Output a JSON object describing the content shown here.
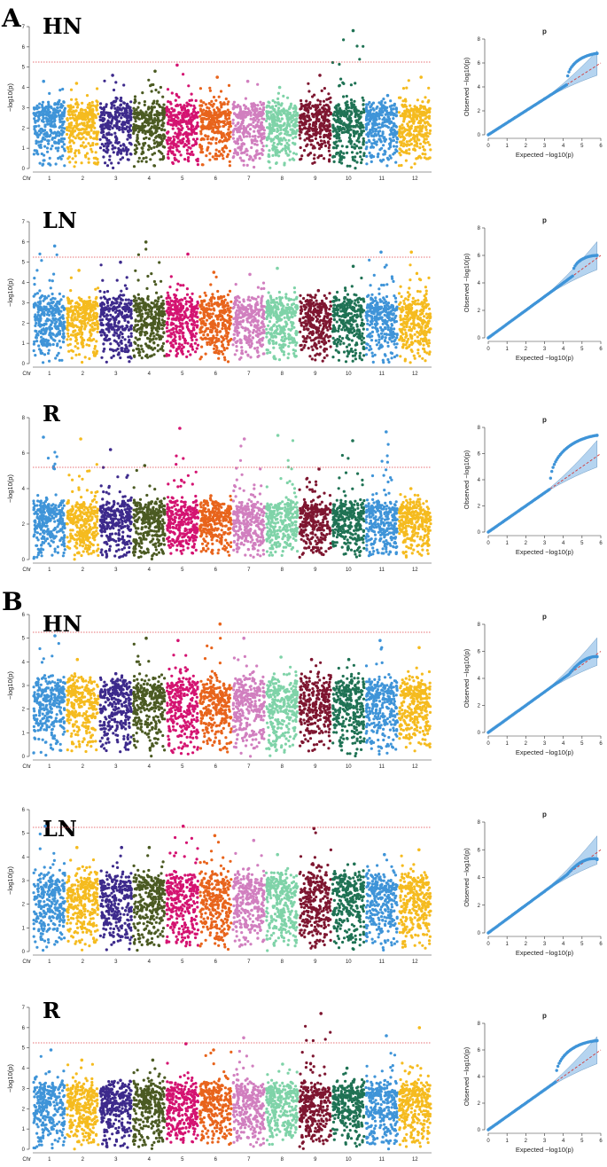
{
  "figure": {
    "panel_letters": [
      "A",
      "B"
    ],
    "colors": {
      "chromosomes": [
        "#3f94d8",
        "#f5bb1f",
        "#3d2a8c",
        "#4b5a22",
        "#d41371",
        "#e8641c",
        "#d17fbf",
        "#7fd3a8",
        "#7e1630",
        "#1f7254",
        "#3f94d8",
        "#f5bb1f"
      ],
      "threshold": "#e0434a",
      "qq_points": "#3f94d8",
      "qq_band": "#a9cdee",
      "qq_expected": "#d13a3a"
    },
    "common_labels": {
      "chr_label": "Chr",
      "manhattan_ylabel": "−log10(p)",
      "qq_title": "p",
      "qq_xlabel": "Expected  −log10(p)",
      "qq_ylabel": "Observed  −log10(p)"
    }
  },
  "chart_data": [
    {
      "id": "A-HN",
      "panel": "A",
      "type": "scatter",
      "kind": "manhattan",
      "title": "HN",
      "xlabel": "Chr",
      "ylabel": "−log10(p)",
      "categories": [
        "1",
        "2",
        "3",
        "4",
        "5",
        "6",
        "7",
        "8",
        "9",
        "10",
        "11",
        "12"
      ],
      "ylim": [
        0,
        7
      ],
      "yticks": [
        0,
        1,
        2,
        3,
        4,
        5,
        6,
        7
      ],
      "threshold": 5.25,
      "chromosome_peaks": [
        4.3,
        4.2,
        4.6,
        4.8,
        5.1,
        4.5,
        4.3,
        4.0,
        4.6,
        6.8,
        3.6,
        4.5
      ]
    },
    {
      "id": "A-HN-qq",
      "panel": "A",
      "type": "scatter",
      "kind": "qq",
      "title": "p",
      "xlim": [
        0,
        6
      ],
      "ylim": [
        0,
        8
      ],
      "xticks": [
        0,
        1,
        2,
        3,
        4,
        5,
        6
      ],
      "yticks": [
        0,
        2,
        4,
        6,
        8
      ],
      "max_expected": 5.8,
      "max_observed": 6.8,
      "inflation_start": 4.2
    },
    {
      "id": "A-LN",
      "panel": "A",
      "type": "scatter",
      "kind": "manhattan",
      "title": "LN",
      "xlabel": "Chr",
      "ylabel": "−log10(p)",
      "categories": [
        "1",
        "2",
        "3",
        "4",
        "5",
        "6",
        "7",
        "8",
        "9",
        "10",
        "11",
        "12"
      ],
      "ylim": [
        0,
        7
      ],
      "yticks": [
        0,
        1,
        2,
        3,
        4,
        5,
        6,
        7
      ],
      "threshold": 5.25,
      "chromosome_peaks": [
        5.8,
        4.6,
        5.0,
        6.0,
        5.4,
        4.5,
        4.4,
        4.7,
        3.6,
        4.8,
        5.5,
        5.5
      ]
    },
    {
      "id": "A-LN-qq",
      "panel": "A",
      "type": "scatter",
      "kind": "qq",
      "title": "p",
      "xlim": [
        0,
        6
      ],
      "ylim": [
        0,
        8
      ],
      "xticks": [
        0,
        1,
        2,
        3,
        4,
        5,
        6
      ],
      "yticks": [
        0,
        2,
        4,
        6,
        8
      ],
      "max_expected": 5.8,
      "max_observed": 6.0,
      "inflation_start": 4.5
    },
    {
      "id": "A-R",
      "panel": "A",
      "type": "scatter",
      "kind": "manhattan",
      "title": "R",
      "xlabel": "Chr",
      "ylabel": "−log10(p)",
      "categories": [
        "1",
        "2",
        "3",
        "4",
        "5",
        "6",
        "7",
        "8",
        "9",
        "10",
        "11",
        "12"
      ],
      "ylim": [
        0,
        8
      ],
      "yticks": [
        0,
        2,
        4,
        6,
        8
      ],
      "threshold": 5.2,
      "chromosome_peaks": [
        6.9,
        6.8,
        6.2,
        5.3,
        7.4,
        3.6,
        6.8,
        7.0,
        5.1,
        6.7,
        7.2,
        4.0
      ]
    },
    {
      "id": "A-R-qq",
      "panel": "A",
      "type": "scatter",
      "kind": "qq",
      "title": "p",
      "xlim": [
        0,
        6
      ],
      "ylim": [
        0,
        8
      ],
      "xticks": [
        0,
        1,
        2,
        3,
        4,
        5,
        6
      ],
      "yticks": [
        0,
        2,
        4,
        6,
        8
      ],
      "max_expected": 5.8,
      "max_observed": 7.4,
      "inflation_start": 3.3
    },
    {
      "id": "B-HN",
      "panel": "B",
      "type": "scatter",
      "kind": "manhattan",
      "title": "HN",
      "xlabel": "Chr",
      "ylabel": "−log10(p)",
      "categories": [
        "1",
        "2",
        "3",
        "4",
        "5",
        "6",
        "7",
        "8",
        "9",
        "10",
        "11",
        "12"
      ],
      "ylim": [
        0,
        6
      ],
      "yticks": [
        0,
        1,
        2,
        3,
        4,
        5,
        6
      ],
      "threshold": 5.25,
      "chromosome_peaks": [
        5.1,
        4.1,
        3.5,
        5.0,
        4.9,
        5.6,
        5.0,
        4.2,
        4.1,
        4.1,
        4.9,
        4.6
      ]
    },
    {
      "id": "B-HN-qq",
      "panel": "B",
      "type": "scatter",
      "kind": "qq",
      "title": "p",
      "xlim": [
        0,
        6
      ],
      "ylim": [
        0,
        8
      ],
      "xticks": [
        0,
        1,
        2,
        3,
        4,
        5,
        6
      ],
      "yticks": [
        0,
        2,
        4,
        6,
        8
      ],
      "max_expected": 5.8,
      "max_observed": 5.6,
      "inflation_start": 4.3
    },
    {
      "id": "B-LN",
      "panel": "B",
      "type": "scatter",
      "kind": "manhattan",
      "title": "LN",
      "xlabel": "Chr",
      "ylabel": "−log10(p)",
      "categories": [
        "1",
        "2",
        "3",
        "4",
        "5",
        "6",
        "7",
        "8",
        "9",
        "10",
        "11",
        "12"
      ],
      "ylim": [
        0,
        6
      ],
      "yticks": [
        0,
        1,
        2,
        3,
        4,
        5,
        6
      ],
      "threshold": 5.25,
      "chromosome_peaks": [
        5.3,
        4.4,
        4.4,
        4.4,
        5.3,
        4.9,
        4.7,
        4.1,
        5.2,
        3.7,
        4.1,
        4.3
      ]
    },
    {
      "id": "B-LN-qq",
      "panel": "B",
      "type": "scatter",
      "kind": "qq",
      "title": "p",
      "xlim": [
        0,
        6
      ],
      "ylim": [
        0,
        8
      ],
      "xticks": [
        0,
        1,
        2,
        3,
        4,
        5,
        6
      ],
      "yticks": [
        0,
        2,
        4,
        6,
        8
      ],
      "max_expected": 5.8,
      "max_observed": 5.3,
      "inflation_start": 4.2
    },
    {
      "id": "B-R",
      "panel": "B",
      "type": "scatter",
      "kind": "manhattan",
      "title": "R",
      "xlabel": "Chr",
      "ylabel": "−log10(p)",
      "categories": [
        "1",
        "2",
        "3",
        "4",
        "5",
        "6",
        "7",
        "8",
        "9",
        "10",
        "11",
        "12"
      ],
      "ylim": [
        0,
        7
      ],
      "yticks": [
        0,
        1,
        2,
        3,
        4,
        5,
        6,
        7
      ],
      "threshold": 5.25,
      "chromosome_peaks": [
        4.9,
        4.4,
        3.4,
        4.4,
        5.2,
        4.9,
        5.5,
        4.2,
        6.7,
        4.0,
        5.6,
        6.0
      ]
    },
    {
      "id": "B-R-qq",
      "panel": "B",
      "type": "scatter",
      "kind": "qq",
      "title": "p",
      "xlim": [
        0,
        6
      ],
      "ylim": [
        0,
        8
      ],
      "xticks": [
        0,
        1,
        2,
        3,
        4,
        5,
        6
      ],
      "yticks": [
        0,
        2,
        4,
        6,
        8
      ],
      "max_expected": 5.8,
      "max_observed": 6.7,
      "inflation_start": 3.6
    }
  ]
}
